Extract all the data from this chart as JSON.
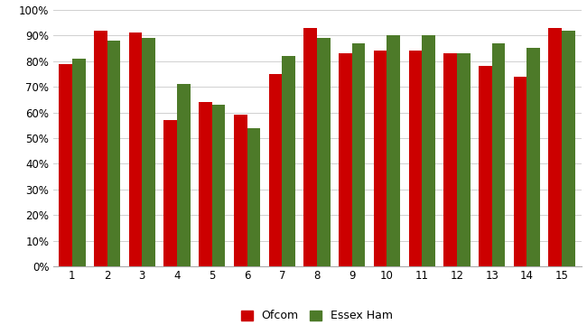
{
  "categories": [
    1,
    2,
    3,
    4,
    5,
    6,
    7,
    8,
    9,
    10,
    11,
    12,
    13,
    14,
    15
  ],
  "ofcom": [
    0.79,
    0.92,
    0.91,
    0.57,
    0.64,
    0.59,
    0.75,
    0.93,
    0.83,
    0.84,
    0.84,
    0.83,
    0.78,
    0.74,
    0.93
  ],
  "essex_ham": [
    0.81,
    0.88,
    0.89,
    0.71,
    0.63,
    0.54,
    0.82,
    0.89,
    0.87,
    0.9,
    0.9,
    0.83,
    0.87,
    0.85,
    0.92
  ],
  "ofcom_color": "#cc0000",
  "essex_color": "#4d7a29",
  "legend_ofcom": "Ofcom",
  "legend_essex": "Essex Ham",
  "ylim": [
    0.0,
    1.0
  ],
  "ytick_vals": [
    0.0,
    0.1,
    0.2,
    0.3,
    0.4,
    0.5,
    0.6,
    0.7,
    0.8,
    0.9,
    1.0
  ],
  "ytick_labels": [
    "0%",
    "10%",
    "20%",
    "30%",
    "40%",
    "50%",
    "60%",
    "70%",
    "80%",
    "90%",
    "100%"
  ],
  "background_color": "#ffffff",
  "grid_color": "#d0d0d0",
  "bar_width": 0.38,
  "figsize": [
    6.5,
    3.6
  ],
  "dpi": 100
}
